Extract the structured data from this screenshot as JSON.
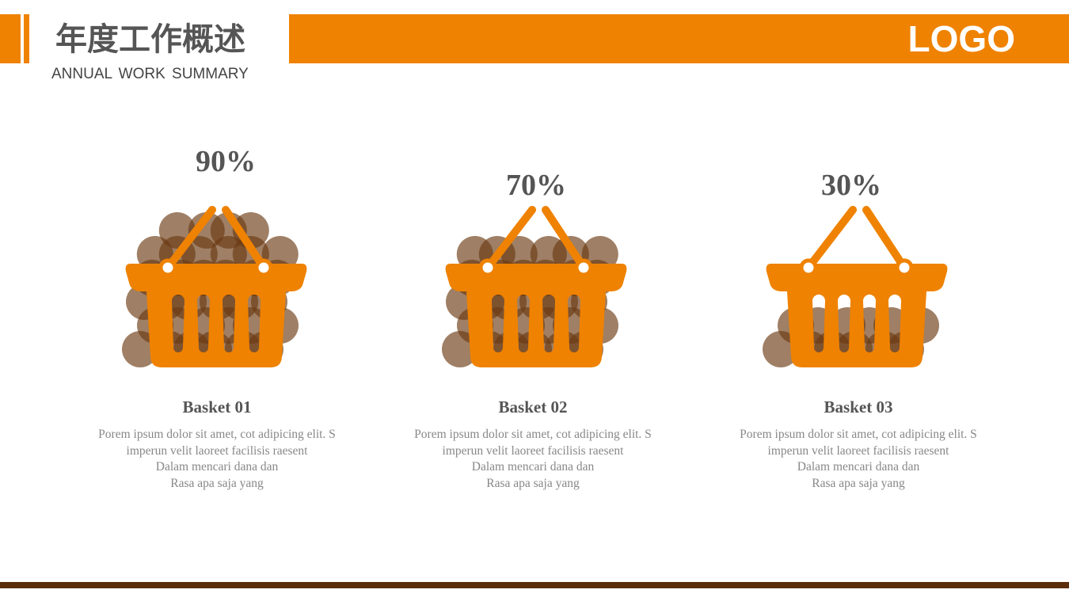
{
  "header": {
    "title": "年度工作概述",
    "subtitle": "ANNUAL  WORK SUMMARY",
    "logo": "LOGO"
  },
  "colors": {
    "accent": "#ef8200",
    "ball": "#6b3a12",
    "footer_line": "#5c2d0a"
  },
  "baskets": [
    {
      "percent": "90%",
      "level": 0.9,
      "name": "Basket 01",
      "lines": [
        "Porem ipsum dolor sit amet, cot adipicing elit. S",
        "imperun velit laoreet facilisis raesent",
        "Dalam mencari dana dan",
        "Rasa apa  saja yang"
      ]
    },
    {
      "percent": "70%",
      "level": 0.7,
      "name": "Basket 02",
      "lines": [
        "Porem ipsum dolor sit amet, cot adipicing elit. S",
        "imperun velit laoreet facilisis raesent",
        "Dalam mencari dana dan",
        "Rasa apa  saja yang"
      ]
    },
    {
      "percent": "30%",
      "level": 0.3,
      "name": "Basket 03",
      "lines": [
        "Porem ipsum dolor sit amet, cot adipicing elit. S",
        "imperun velit laoreet facilisis raesent",
        "Dalam mencari dana dan",
        "Rasa apa  saja yang"
      ]
    }
  ]
}
